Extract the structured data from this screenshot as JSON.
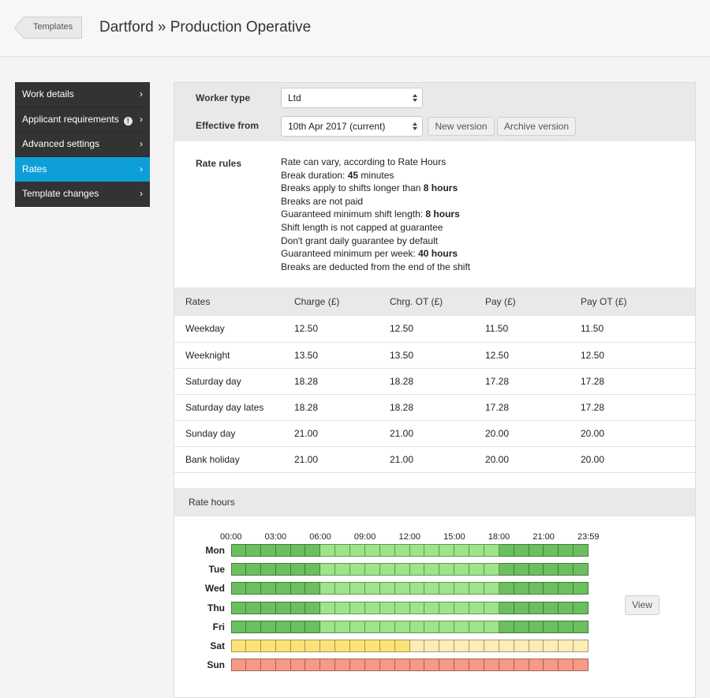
{
  "header": {
    "back_label": "Templates",
    "title": "Dartford » Production Operative"
  },
  "sidebar": {
    "items": [
      {
        "label": "Work details",
        "active": false,
        "info": false
      },
      {
        "label": "Applicant requirements",
        "active": false,
        "info": true
      },
      {
        "label": "Advanced settings",
        "active": false,
        "info": false
      },
      {
        "label": "Rates",
        "active": true,
        "info": false
      },
      {
        "label": "Template changes",
        "active": false,
        "info": false
      }
    ],
    "chevron": "›",
    "info_glyph": "!"
  },
  "form": {
    "worker_type_label": "Worker type",
    "worker_type_value": "Ltd",
    "effective_from_label": "Effective from",
    "effective_from_value": "10th Apr 2017 (current)",
    "new_version_label": "New version",
    "archive_version_label": "Archive version"
  },
  "rate_rules": {
    "label": "Rate rules",
    "lines": [
      {
        "text": "Rate can vary, according to Rate Hours",
        "bold": ""
      },
      {
        "text": "Break duration: ",
        "bold": "45",
        "suffix": " minutes"
      },
      {
        "text": "Breaks apply to shifts longer than ",
        "bold": "8 hours",
        "suffix": ""
      },
      {
        "text": "Breaks are not paid",
        "bold": ""
      },
      {
        "text": "Guaranteed minimum shift length: ",
        "bold": "8 hours",
        "suffix": ""
      },
      {
        "text": "Shift length is not capped at guarantee",
        "bold": ""
      },
      {
        "text": "Don't grant daily guarantee by default",
        "bold": ""
      },
      {
        "text": "Guaranteed minimum per week: ",
        "bold": "40 hours",
        "suffix": ""
      },
      {
        "text": "Breaks are deducted from the end of the shift",
        "bold": ""
      }
    ]
  },
  "rates": {
    "headers": [
      "Rates",
      "Charge (£)",
      "Chrg. OT (£)",
      "Pay (£)",
      "Pay OT (£)"
    ],
    "rows": [
      [
        "Weekday",
        "12.50",
        "12.50",
        "11.50",
        "11.50"
      ],
      [
        "Weeknight",
        "13.50",
        "13.50",
        "12.50",
        "12.50"
      ],
      [
        "Saturday day",
        "18.28",
        "18.28",
        "17.28",
        "17.28"
      ],
      [
        "Saturday day lates",
        "18.28",
        "18.28",
        "17.28",
        "17.28"
      ],
      [
        "Sunday day",
        "21.00",
        "21.00",
        "20.00",
        "20.00"
      ],
      [
        "Bank holiday",
        "21.00",
        "21.00",
        "20.00",
        "20.00"
      ]
    ]
  },
  "rate_hours": {
    "title": "Rate hours",
    "hour_labels": [
      "00:00",
      "03:00",
      "06:00",
      "09:00",
      "12:00",
      "15:00",
      "18:00",
      "21:00",
      "23:59"
    ],
    "colors": {
      "weeknight": "#6cbf5f",
      "weekday": "#9de48a",
      "saturday_day": "#fbe37a",
      "saturday_lates": "#fcecb6",
      "sunday": "#f89a86"
    },
    "days": [
      {
        "label": "Mon",
        "pattern": [
          "weeknight",
          6,
          "weekday",
          12,
          "weeknight",
          6
        ]
      },
      {
        "label": "Tue",
        "pattern": [
          "weeknight",
          6,
          "weekday",
          12,
          "weeknight",
          6
        ]
      },
      {
        "label": "Wed",
        "pattern": [
          "weeknight",
          6,
          "weekday",
          12,
          "weeknight",
          6
        ]
      },
      {
        "label": "Thu",
        "pattern": [
          "weeknight",
          6,
          "weekday",
          12,
          "weeknight",
          6
        ]
      },
      {
        "label": "Fri",
        "pattern": [
          "weeknight",
          6,
          "weekday",
          12,
          "weeknight",
          6
        ]
      },
      {
        "label": "Sat",
        "pattern": [
          "saturday_day",
          12,
          "saturday_lates",
          12
        ]
      },
      {
        "label": "Sun",
        "pattern": [
          "sunday",
          24
        ]
      }
    ],
    "view_label": "View"
  }
}
